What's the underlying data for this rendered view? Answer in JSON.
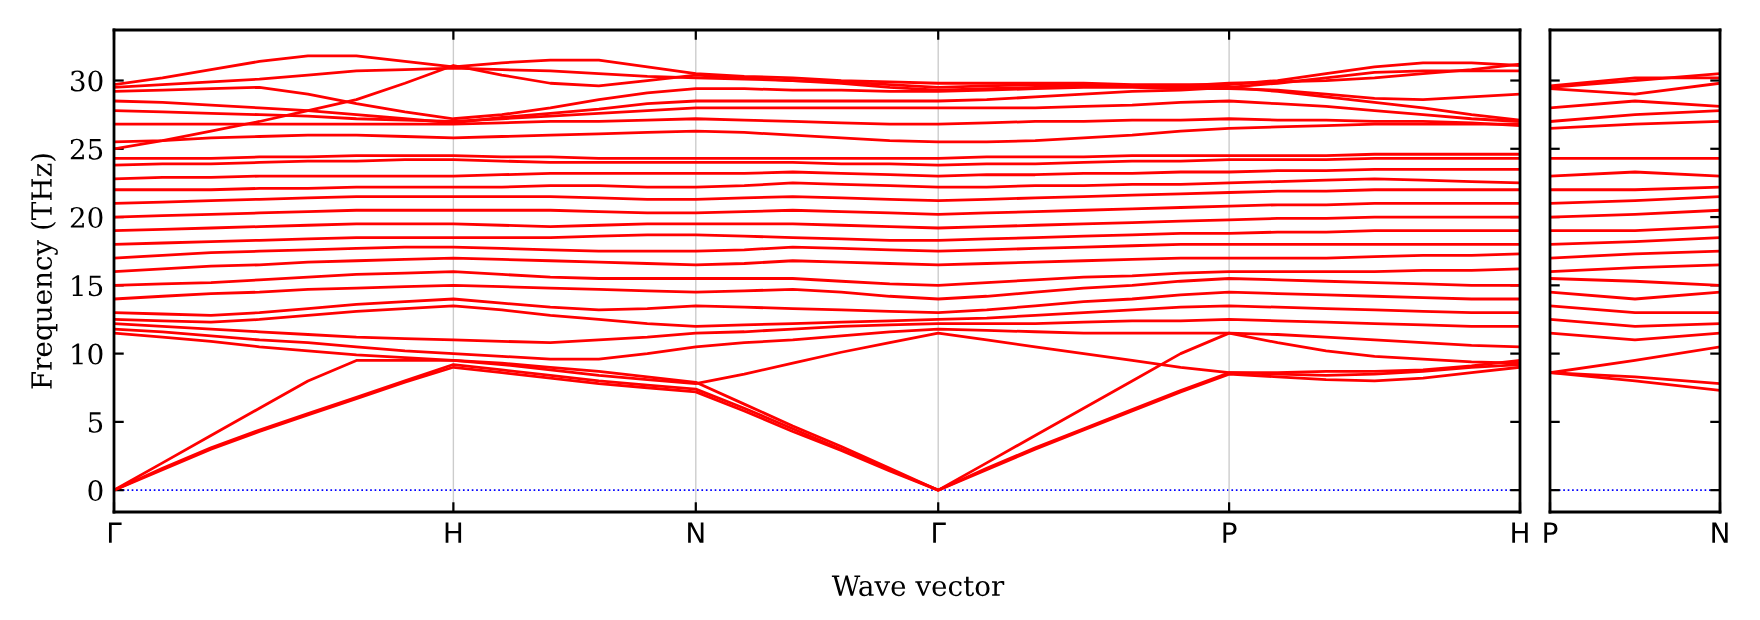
{
  "chart_data": [
    {
      "type": "line",
      "xlabel": "Wave vector",
      "ylabel": "Frequency (THz)",
      "categories": [
        "Γ",
        null,
        null,
        null,
        null,
        null,
        null,
        "H",
        null,
        null,
        null,
        null,
        "N",
        null,
        null,
        null,
        null,
        "Γ",
        null,
        null,
        null,
        null,
        null,
        "P",
        null,
        null,
        null,
        null,
        null,
        "H"
      ],
      "ylim": [
        -1.6,
        33.7
      ],
      "yticks": [
        0,
        5,
        10,
        15,
        20,
        25,
        30
      ],
      "grid": "x",
      "marker": "none",
      "line_style": "solid",
      "ref_lines": [
        {
          "axis": "y",
          "value": 0,
          "color": "#0000ff",
          "line_style": "dotted"
        }
      ],
      "series": [
        {
          "color": "#ff0000",
          "values": [
            0,
            1.5,
            3,
            4.3,
            5.5,
            6.7,
            7.9,
            9,
            8.6,
            8.2,
            7.8,
            7.5,
            7.2,
            5.8,
            4.3,
            2.9,
            1.4,
            0,
            1.5,
            3,
            4.4,
            5.8,
            7.2,
            8.5,
            8.3,
            8.1,
            8.0,
            8.2,
            8.6,
            9
          ]
        },
        {
          "color": "#ff0000",
          "values": [
            0,
            1.6,
            3.1,
            4.4,
            5.6,
            6.8,
            8,
            9.2,
            8.8,
            8.4,
            8,
            7.7,
            7.4,
            6,
            4.5,
            3,
            1.5,
            0,
            1.6,
            3.1,
            4.5,
            5.9,
            7.3,
            8.6,
            8.5,
            8.4,
            8.5,
            8.7,
            9,
            9.2
          ]
        },
        {
          "color": "#ff0000",
          "values": [
            0,
            2,
            4,
            6,
            8,
            9.5,
            9.5,
            9.5,
            9.3,
            9,
            8.7,
            8.3,
            7.9,
            6.3,
            4.7,
            3.2,
            1.6,
            0,
            2,
            4,
            6,
            8,
            10,
            11.5,
            10.8,
            10.2,
            9.8,
            9.6,
            9.4,
            9.3
          ]
        },
        {
          "color": "#ff0000",
          "values": [
            11.5,
            11.2,
            10.9,
            10.5,
            10.2,
            9.9,
            9.7,
            9.5,
            9.2,
            8.8,
            8.4,
            8.1,
            7.8,
            8.5,
            9.3,
            10.1,
            10.8,
            11.5,
            11,
            10.5,
            10,
            9.5,
            9,
            8.6,
            8.6,
            8.7,
            8.7,
            8.8,
            9.1,
            9.5
          ]
        },
        {
          "color": "#ff0000",
          "values": [
            11.8,
            11.6,
            11.3,
            11,
            10.8,
            10.5,
            10.2,
            10,
            9.8,
            9.6,
            9.6,
            10,
            10.5,
            10.8,
            11,
            11.3,
            11.6,
            11.8,
            11.7,
            11.6,
            11.5,
            11.5,
            11.5,
            11.5,
            11.4,
            11.2,
            11,
            10.8,
            10.6,
            10.5
          ]
        },
        {
          "color": "#ff0000",
          "values": [
            12.2,
            12,
            11.8,
            11.6,
            11.4,
            11.2,
            11.1,
            11,
            10.9,
            10.8,
            11,
            11.2,
            11.5,
            11.6,
            11.8,
            12,
            12.1,
            12.2,
            12.2,
            12.2,
            12.3,
            12.4,
            12.4,
            12.5,
            12.4,
            12.3,
            12.2,
            12.1,
            12,
            12
          ]
        },
        {
          "color": "#ff0000",
          "values": [
            12.5,
            12.4,
            12.3,
            12.5,
            12.8,
            13.1,
            13.3,
            13.5,
            13.2,
            12.8,
            12.5,
            12.2,
            12,
            12.1,
            12.2,
            12.3,
            12.4,
            12.5,
            12.6,
            12.8,
            13,
            13.2,
            13.4,
            13.5,
            13.4,
            13.3,
            13.2,
            13.1,
            13,
            13
          ]
        },
        {
          "color": "#ff0000",
          "values": [
            13,
            12.9,
            12.8,
            13,
            13.3,
            13.6,
            13.8,
            14,
            13.7,
            13.4,
            13.2,
            13.3,
            13.5,
            13.4,
            13.3,
            13.2,
            13.1,
            13,
            13.2,
            13.5,
            13.8,
            14,
            14.3,
            14.5,
            14.4,
            14.3,
            14.2,
            14.1,
            14,
            14
          ]
        },
        {
          "color": "#ff0000",
          "values": [
            14,
            14.2,
            14.4,
            14.5,
            14.7,
            14.8,
            14.9,
            15,
            14.9,
            14.8,
            14.7,
            14.6,
            14.5,
            14.6,
            14.7,
            14.5,
            14.2,
            14,
            14.2,
            14.5,
            14.8,
            15,
            15.3,
            15.5,
            15.4,
            15.3,
            15.2,
            15.1,
            15,
            15
          ]
        },
        {
          "color": "#ff0000",
          "values": [
            15,
            15.1,
            15.2,
            15.4,
            15.6,
            15.8,
            15.9,
            16,
            15.8,
            15.6,
            15.5,
            15.5,
            15.5,
            15.5,
            15.5,
            15.3,
            15.1,
            15,
            15.2,
            15.4,
            15.6,
            15.7,
            15.9,
            16,
            16,
            16,
            16,
            16.1,
            16.1,
            16.2
          ]
        },
        {
          "color": "#ff0000",
          "values": [
            16,
            16.2,
            16.4,
            16.5,
            16.7,
            16.8,
            16.9,
            17,
            16.9,
            16.8,
            16.7,
            16.6,
            16.5,
            16.6,
            16.8,
            16.7,
            16.6,
            16.5,
            16.6,
            16.7,
            16.8,
            16.9,
            17,
            17,
            17,
            17,
            17.1,
            17.2,
            17.2,
            17.3
          ]
        },
        {
          "color": "#ff0000",
          "values": [
            17,
            17.2,
            17.4,
            17.5,
            17.6,
            17.7,
            17.8,
            17.8,
            17.7,
            17.6,
            17.5,
            17.5,
            17.5,
            17.6,
            17.8,
            17.7,
            17.6,
            17.5,
            17.6,
            17.7,
            17.8,
            17.9,
            18,
            18,
            18,
            18,
            18,
            18,
            18,
            18
          ]
        },
        {
          "color": "#ff0000",
          "values": [
            18,
            18.1,
            18.2,
            18.3,
            18.4,
            18.5,
            18.5,
            18.5,
            18.5,
            18.5,
            18.6,
            18.7,
            18.7,
            18.6,
            18.5,
            18.4,
            18.3,
            18.3,
            18.4,
            18.5,
            18.6,
            18.7,
            18.8,
            18.8,
            18.9,
            18.9,
            19,
            19,
            19,
            19
          ]
        },
        {
          "color": "#ff0000",
          "values": [
            19,
            19.1,
            19.2,
            19.3,
            19.4,
            19.5,
            19.5,
            19.5,
            19.4,
            19.3,
            19.4,
            19.5,
            19.5,
            19.5,
            19.5,
            19.4,
            19.3,
            19.2,
            19.3,
            19.4,
            19.5,
            19.6,
            19.7,
            19.8,
            19.9,
            19.9,
            20,
            20,
            20,
            20
          ]
        },
        {
          "color": "#ff0000",
          "values": [
            20,
            20.1,
            20.2,
            20.3,
            20.4,
            20.5,
            20.5,
            20.5,
            20.5,
            20.5,
            20.4,
            20.3,
            20.3,
            20.4,
            20.5,
            20.4,
            20.3,
            20.2,
            20.3,
            20.4,
            20.5,
            20.6,
            20.7,
            20.8,
            20.9,
            20.9,
            21,
            21,
            21,
            21
          ]
        },
        {
          "color": "#ff0000",
          "values": [
            21,
            21.1,
            21.2,
            21.3,
            21.4,
            21.5,
            21.5,
            21.5,
            21.5,
            21.5,
            21.4,
            21.3,
            21.3,
            21.4,
            21.5,
            21.4,
            21.3,
            21.2,
            21.3,
            21.4,
            21.5,
            21.6,
            21.7,
            21.8,
            21.9,
            21.9,
            22,
            22,
            22,
            22
          ]
        },
        {
          "color": "#ff0000",
          "values": [
            22,
            22,
            22,
            22.1,
            22.1,
            22.2,
            22.2,
            22.2,
            22.2,
            22.3,
            22.3,
            22.2,
            22.2,
            22.3,
            22.5,
            22.4,
            22.3,
            22.2,
            22.2,
            22.3,
            22.3,
            22.4,
            22.4,
            22.5,
            22.6,
            22.7,
            22.8,
            22.7,
            22.6,
            22.5
          ]
        },
        {
          "color": "#ff0000",
          "values": [
            22.8,
            22.9,
            22.9,
            23,
            23,
            23,
            23,
            23,
            23.1,
            23.2,
            23.2,
            23.2,
            23.2,
            23.2,
            23.3,
            23.2,
            23.1,
            23,
            23.1,
            23.1,
            23.2,
            23.2,
            23.3,
            23.3,
            23.4,
            23.4,
            23.5,
            23.5,
            23.5,
            23.5
          ]
        },
        {
          "color": "#ff0000",
          "values": [
            23.8,
            23.9,
            23.9,
            24,
            24.1,
            24.1,
            24.2,
            24.2,
            24.1,
            24,
            24,
            24,
            24,
            24,
            24,
            23.9,
            23.9,
            23.8,
            23.9,
            23.9,
            24,
            24.1,
            24.1,
            24.2,
            24.2,
            24.2,
            24.3,
            24.3,
            24.3,
            24.3
          ]
        },
        {
          "color": "#ff0000",
          "values": [
            24.3,
            24.3,
            24.3,
            24.4,
            24.4,
            24.5,
            24.5,
            24.5,
            24.4,
            24.4,
            24.3,
            24.3,
            24.3,
            24.3,
            24.3,
            24.3,
            24.3,
            24.3,
            24.4,
            24.4,
            24.4,
            24.5,
            24.5,
            24.5,
            24.5,
            24.5,
            24.6,
            24.6,
            24.6,
            24.6
          ]
        },
        {
          "color": "#ff0000",
          "values": [
            25.5,
            25.6,
            25.8,
            25.9,
            26,
            26,
            25.9,
            25.8,
            25.9,
            26,
            26.1,
            26.2,
            26.3,
            26.2,
            26,
            25.8,
            25.6,
            25.5,
            25.5,
            25.6,
            25.8,
            26,
            26.3,
            26.5,
            26.6,
            26.7,
            26.8,
            26.8,
            26.8,
            26.8
          ]
        },
        {
          "color": "#ff0000",
          "values": [
            26.8,
            26.8,
            26.8,
            26.8,
            26.8,
            26.8,
            26.8,
            26.8,
            26.9,
            27,
            27,
            27.1,
            27.2,
            27.1,
            27,
            26.9,
            26.8,
            26.8,
            26.9,
            27,
            27,
            27.1,
            27.1,
            27.2,
            27.1,
            27.1,
            27,
            27,
            26.9,
            26.7
          ]
        },
        {
          "color": "#ff0000",
          "values": [
            27.8,
            27.7,
            27.6,
            27.5,
            27.4,
            27.2,
            27.1,
            27,
            27.2,
            27.4,
            27.6,
            27.8,
            28,
            28,
            28,
            28,
            28,
            28,
            28,
            28,
            28.1,
            28.2,
            28.4,
            28.5,
            28.3,
            28.1,
            27.8,
            27.5,
            27.2,
            27
          ]
        },
        {
          "color": "#ff0000",
          "values": [
            28.5,
            28.4,
            28.2,
            28,
            27.8,
            27.5,
            27.2,
            26.9,
            27.3,
            27.6,
            27.9,
            28.3,
            28.5,
            28.5,
            28.5,
            28.5,
            28.5,
            28.5,
            28.6,
            28.8,
            29,
            29.2,
            29.3,
            29.5,
            29.2,
            28.8,
            28.4,
            28,
            27.5,
            27.1
          ]
        },
        {
          "color": "#ff0000",
          "values": [
            29.2,
            29.3,
            29.4,
            29.5,
            29,
            28.3,
            27.7,
            27.2,
            27.5,
            28,
            28.6,
            29.1,
            29.4,
            29.4,
            29.3,
            29.3,
            29.2,
            29.2,
            29.3,
            29.4,
            29.5,
            29.5,
            29.4,
            29.4,
            29.3,
            29,
            28.7,
            28.6,
            28.8,
            29
          ]
        },
        {
          "color": "#ff0000",
          "values": [
            29.5,
            29.7,
            29.9,
            30.1,
            30.4,
            30.7,
            30.8,
            30.9,
            30.8,
            30.7,
            30.5,
            30.3,
            30.2,
            30.1,
            30,
            29.9,
            29.7,
            29.5,
            29.6,
            29.7,
            29.7,
            29.6,
            29.5,
            29.5,
            29.8,
            30.2,
            30.6,
            30.7,
            30.7,
            30.7
          ]
        },
        {
          "color": "#ff0000",
          "values": [
            29.7,
            30.2,
            30.8,
            31.4,
            31.8,
            31.8,
            31.4,
            31,
            31.3,
            31.5,
            31.5,
            31,
            30.5,
            30.3,
            30.2,
            30,
            29.9,
            29.8,
            29.8,
            29.8,
            29.8,
            29.7,
            29.7,
            29.7,
            30,
            30.5,
            31,
            31.3,
            31.3,
            31.1
          ]
        },
        {
          "color": "#ff0000",
          "values": [
            25,
            25.6,
            26.3,
            27,
            27.8,
            28.6,
            29.8,
            31.1,
            30.4,
            29.8,
            29.6,
            30,
            30.4,
            30.2,
            30,
            29.8,
            29.5,
            29.3,
            29.4,
            29.5,
            29.6,
            29.6,
            29.6,
            29.8,
            29.9,
            30,
            30.2,
            30.5,
            30.8,
            31.2
          ]
        }
      ]
    },
    {
      "type": "line",
      "categories": [
        "P",
        null,
        "N"
      ],
      "ylim": [
        -1.6,
        33.7
      ],
      "yticks": [
        0,
        5,
        10,
        15,
        20,
        25,
        30
      ],
      "tick_labels": "x",
      "marker": "none",
      "line_style": "solid",
      "ref_lines": [
        {
          "axis": "y",
          "value": 0,
          "color": "#0000ff",
          "line_style": "dotted"
        }
      ],
      "series": [
        {
          "color": "#ff0000",
          "values": [
            8.6,
            8,
            7.3
          ]
        },
        {
          "color": "#ff0000",
          "values": [
            8.6,
            8.3,
            7.8
          ]
        },
        {
          "color": "#ff0000",
          "values": [
            8.6,
            9.5,
            10.5
          ]
        },
        {
          "color": "#ff0000",
          "values": [
            11.5,
            11,
            11.5
          ]
        },
        {
          "color": "#ff0000",
          "values": [
            12.5,
            12,
            12.2
          ]
        },
        {
          "color": "#ff0000",
          "values": [
            13.5,
            13,
            13
          ]
        },
        {
          "color": "#ff0000",
          "values": [
            14.5,
            14,
            14.5
          ]
        },
        {
          "color": "#ff0000",
          "values": [
            15.5,
            15.3,
            15
          ]
        },
        {
          "color": "#ff0000",
          "values": [
            16,
            16.3,
            16.5
          ]
        },
        {
          "color": "#ff0000",
          "values": [
            17,
            17.3,
            17.5
          ]
        },
        {
          "color": "#ff0000",
          "values": [
            18,
            18.2,
            18.5
          ]
        },
        {
          "color": "#ff0000",
          "values": [
            19,
            19,
            19.3
          ]
        },
        {
          "color": "#ff0000",
          "values": [
            20,
            20.2,
            20.5
          ]
        },
        {
          "color": "#ff0000",
          "values": [
            21,
            21.2,
            21.5
          ]
        },
        {
          "color": "#ff0000",
          "values": [
            22,
            22,
            22.2
          ]
        },
        {
          "color": "#ff0000",
          "values": [
            23,
            23.3,
            23
          ]
        },
        {
          "color": "#ff0000",
          "values": [
            24.3,
            24.3,
            24.3
          ]
        },
        {
          "color": "#ff0000",
          "values": [
            26.5,
            26.8,
            27
          ]
        },
        {
          "color": "#ff0000",
          "values": [
            27,
            27.5,
            27.8
          ]
        },
        {
          "color": "#ff0000",
          "values": [
            28,
            28.5,
            28.1
          ]
        },
        {
          "color": "#ff0000",
          "values": [
            29.4,
            29,
            29.8
          ]
        },
        {
          "color": "#ff0000",
          "values": [
            29.5,
            30,
            30.5
          ]
        },
        {
          "color": "#ff0000",
          "values": [
            29.6,
            30.2,
            30.2
          ]
        }
      ]
    }
  ]
}
